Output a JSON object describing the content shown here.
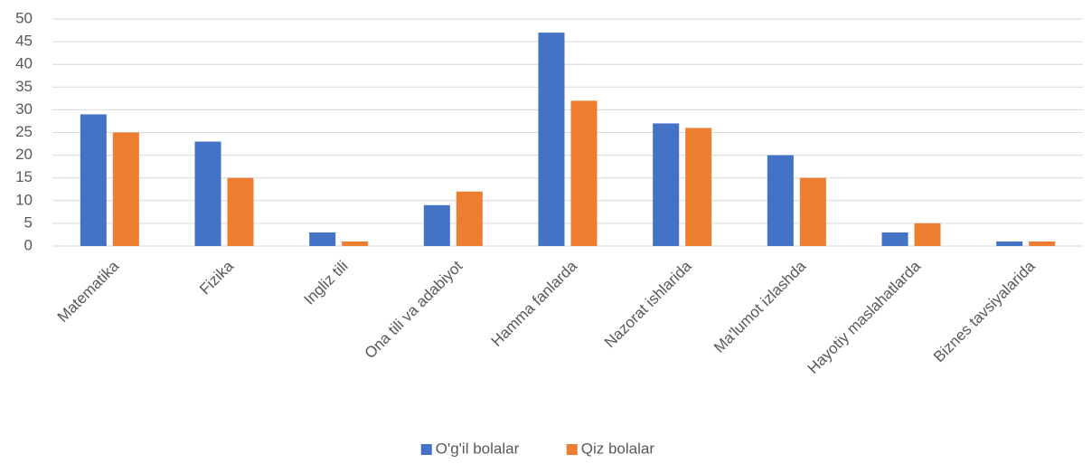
{
  "chart_data": {
    "type": "bar",
    "categories": [
      "Matematika",
      "Fizika",
      "Ingliz tili",
      "Ona tili va adabiyot",
      "Hamma fanlarda",
      "Nazorat ishlarida",
      "Ma'lumot izlashda",
      "Hayotiy maslahatlarda",
      "Biznes tavsiyalarida"
    ],
    "series": [
      {
        "name": "O'g'il bolalar",
        "color": "#4472c4",
        "values": [
          29,
          23,
          3,
          9,
          47,
          27,
          20,
          3,
          1
        ]
      },
      {
        "name": "Qiz bolalar",
        "color": "#ed7d31",
        "values": [
          25,
          15,
          1,
          12,
          32,
          26,
          15,
          5,
          1
        ]
      }
    ],
    "ylim": [
      0,
      50
    ],
    "yticks": [
      0,
      5,
      10,
      15,
      20,
      25,
      30,
      35,
      40,
      45,
      50
    ],
    "grid": true,
    "legend": "bottom"
  }
}
